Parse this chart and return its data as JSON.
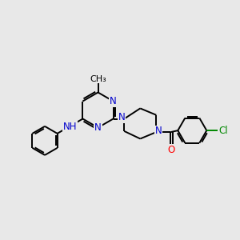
{
  "background_color": "#e8e8e8",
  "bond_color": "#000000",
  "N_color": "#0000cc",
  "O_color": "#ff0000",
  "Cl_color": "#008800",
  "line_width": 1.4,
  "font_size": 8.5,
  "figsize": [
    3.0,
    3.0
  ],
  "dpi": 100,
  "xlim": [
    0,
    12
  ],
  "ylim": [
    0,
    12
  ]
}
